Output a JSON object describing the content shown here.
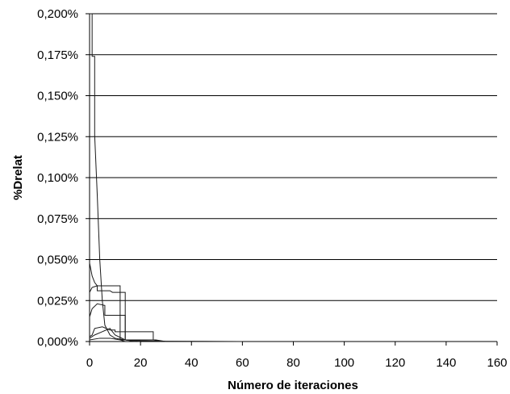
{
  "chart_data": {
    "type": "line",
    "title": "",
    "xlabel": "Número de iteraciones",
    "ylabel": "%Drelat",
    "xlim": [
      0,
      160
    ],
    "ylim": [
      0,
      0.2
    ],
    "x_ticks": [
      0,
      20,
      40,
      60,
      80,
      100,
      120,
      140,
      160
    ],
    "x_tick_labels": [
      "0",
      "20",
      "40",
      "60",
      "80",
      "100",
      "120",
      "140",
      "160"
    ],
    "y_ticks": [
      0,
      0.025,
      0.05,
      0.075,
      0.1,
      0.125,
      0.15,
      0.175,
      0.2
    ],
    "y_tick_labels": [
      "0,000%",
      "0,025%",
      "0,050%",
      "0,075%",
      "0,100%",
      "0,125%",
      "0,150%",
      "0,175%",
      "0,200%"
    ],
    "grid": true,
    "legend": "none",
    "line_color": "#1a1a1a",
    "series": [
      {
        "x": [
          0,
          1,
          1,
          2,
          2,
          3,
          4,
          5,
          6,
          8,
          10,
          14,
          20,
          30,
          60
        ],
        "y": [
          0.2,
          0.2,
          0.174,
          0.174,
          0.126,
          0.09,
          0.05,
          0.025,
          0.01,
          0.004,
          0.002,
          0.001,
          0.0005,
          0.0002,
          0
        ]
      },
      {
        "x": [
          0,
          1,
          2,
          3,
          3,
          12,
          12,
          26,
          30
        ],
        "y": [
          0.048,
          0.04,
          0.036,
          0.034,
          0.034,
          0.034,
          0.001,
          0.001,
          0
        ]
      },
      {
        "x": [
          0,
          1,
          3,
          3,
          8,
          9,
          14,
          14,
          20
        ],
        "y": [
          0.03,
          0.033,
          0.034,
          0.031,
          0.031,
          0.03,
          0.03,
          0.001,
          0
        ]
      },
      {
        "x": [
          0,
          1,
          3,
          6,
          6,
          14,
          14,
          18
        ],
        "y": [
          0.015,
          0.02,
          0.023,
          0.022,
          0.016,
          0.016,
          0.001,
          0
        ]
      },
      {
        "x": [
          0,
          1,
          2,
          5,
          8,
          10,
          10,
          25,
          25,
          28
        ],
        "y": [
          0.003,
          0.004,
          0.008,
          0.009,
          0.007,
          0.007,
          0.006,
          0.006,
          0.001,
          0
        ]
      },
      {
        "x": [
          0,
          2,
          5,
          8,
          10,
          14,
          20
        ],
        "y": [
          0.002,
          0.004,
          0.006,
          0.008,
          0.004,
          0.001,
          0
        ]
      },
      {
        "x": [
          0,
          4,
          8,
          12,
          14
        ],
        "y": [
          0.001,
          0.002,
          0.002,
          0.001,
          0
        ]
      }
    ]
  }
}
